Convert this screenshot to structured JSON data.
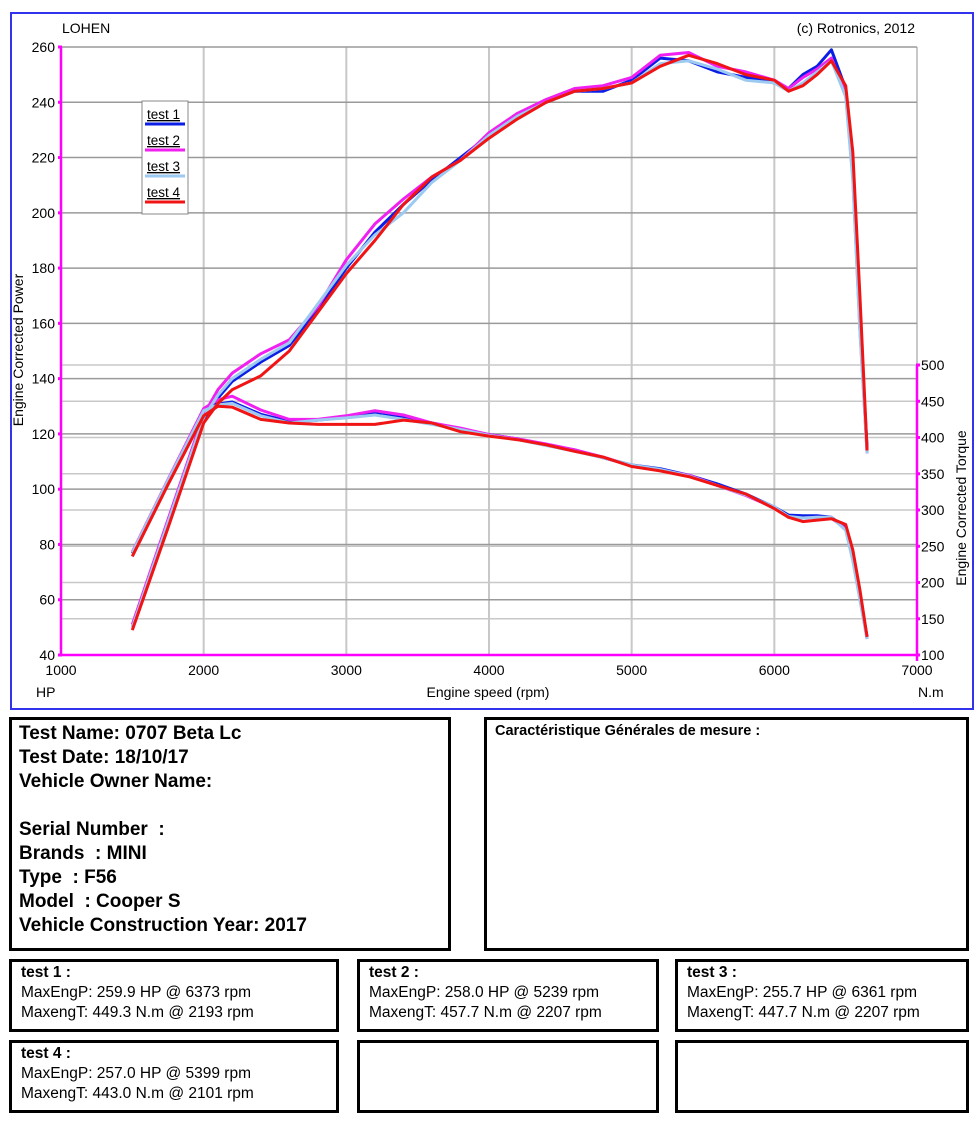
{
  "chart_data": {
    "type": "line",
    "title_left": "LOHEN",
    "title_right": "(c) Rotronics, 2012",
    "xlabel": "Engine speed (rpm)",
    "x_unit_left": "HP",
    "x_unit_right": "N.m",
    "ylabel_left": "Engine Corrected Power",
    "ylabel_right": "Engine Corrected Torque",
    "xlim": [
      1000,
      7000
    ],
    "xticks": [
      1000,
      2000,
      3000,
      4000,
      5000,
      6000,
      7000
    ],
    "ylim_left": [
      40,
      260
    ],
    "yticks_left": [
      40,
      60,
      80,
      100,
      120,
      140,
      160,
      180,
      200,
      220,
      240,
      260
    ],
    "ylim_right": [
      100,
      500
    ],
    "yticks_right": [
      100,
      150,
      200,
      250,
      300,
      350,
      400,
      450,
      500
    ],
    "grid": true,
    "legend_position": "top-left",
    "rpm": [
      1500,
      1750,
      2000,
      2100,
      2200,
      2400,
      2600,
      2800,
      3000,
      3200,
      3400,
      3600,
      3800,
      4000,
      4200,
      4400,
      4600,
      4800,
      5000,
      5200,
      5400,
      5600,
      5800,
      6000,
      6100,
      6200,
      6300,
      6400,
      6500,
      6550,
      6600,
      6650
    ],
    "series": [
      {
        "name": "test 1",
        "color": "#0a1ee6",
        "power": [
          50,
          88,
          125,
          133,
          139,
          146,
          152,
          165,
          180,
          193,
          203,
          212,
          220,
          228,
          235,
          240,
          244,
          244,
          248,
          256,
          255,
          251,
          249,
          247,
          245,
          250,
          253,
          259,
          245,
          215,
          160,
          115
        ],
        "torque": [
          240,
          340,
          435,
          446,
          449,
          432,
          422,
          424,
          428,
          433,
          427,
          420,
          412,
          404,
          398,
          390,
          383,
          372,
          362,
          357,
          348,
          336,
          322,
          304,
          293,
          292,
          292,
          290,
          275,
          235,
          180,
          125
        ]
      },
      {
        "name": "test 2",
        "color": "#f020f0",
        "power": [
          51,
          89,
          127,
          136,
          142,
          149,
          154,
          166,
          183,
          196,
          205,
          213,
          219,
          229,
          236,
          241,
          245,
          246,
          249,
          257,
          258,
          253,
          251,
          248,
          245,
          249,
          252,
          256,
          243,
          213,
          158,
          113
        ],
        "torque": [
          242,
          342,
          440,
          452,
          457,
          438,
          425,
          425,
          430,
          437,
          431,
          420,
          413,
          404,
          398,
          391,
          383,
          373,
          361,
          355,
          348,
          334,
          320,
          303,
          290,
          289,
          290,
          289,
          274,
          233,
          178,
          122
        ]
      },
      {
        "name": "test 3",
        "color": "#9ccaf0",
        "power": [
          50,
          88,
          126,
          134,
          140,
          147,
          153,
          167,
          181,
          192,
          200,
          211,
          219,
          228,
          235,
          240,
          244,
          245,
          247,
          254,
          255,
          252,
          248,
          247,
          244,
          247,
          251,
          255,
          242,
          212,
          157,
          113
        ],
        "torque": [
          241,
          341,
          437,
          445,
          447,
          430,
          420,
          424,
          427,
          431,
          425,
          418,
          411,
          403,
          397,
          389,
          381,
          372,
          362,
          356,
          347,
          334,
          321,
          304,
          291,
          289,
          290,
          290,
          272,
          230,
          176,
          122
        ]
      },
      {
        "name": "test 4",
        "color": "#f01414",
        "power": [
          49,
          86,
          124,
          131,
          136,
          141,
          150,
          164,
          178,
          190,
          203,
          213,
          219,
          227,
          234,
          240,
          244,
          245,
          247,
          253,
          257,
          254,
          250,
          248,
          244,
          246,
          250,
          255,
          246,
          222,
          170,
          114
        ],
        "torque": [
          236,
          335,
          430,
          443,
          442,
          425,
          420,
          418,
          418,
          418,
          424,
          420,
          408,
          402,
          397,
          390,
          381,
          373,
          360,
          354,
          346,
          334,
          322,
          302,
          290,
          284,
          286,
          288,
          280,
          245,
          190,
          125
        ]
      }
    ]
  },
  "info": {
    "lines": [
      "Test Name: 0707 Beta Lc",
      "Test Date: 18/10/17",
      "Vehicle Owner Name:",
      "",
      "Serial Number  :",
      "Brands  : MINI",
      "Type  : F56",
      "Model  : Cooper S",
      "Vehicle Construction Year: 2017"
    ],
    "general_title": "Caractéristique Générales de mesure :"
  },
  "results": [
    {
      "title": "test 1 :",
      "power": "MaxEngP: 259.9 HP @ 6373 rpm",
      "torque": "MaxengT: 449.3 N.m @ 2193 rpm"
    },
    {
      "title": "test 2 :",
      "power": "MaxEngP: 258.0 HP @ 5239 rpm",
      "torque": "MaxengT: 457.7 N.m @ 2207 rpm"
    },
    {
      "title": "test 3 :",
      "power": "MaxEngP: 255.7 HP @ 6361 rpm",
      "torque": "MaxengT: 447.7 N.m @ 2207 rpm"
    },
    {
      "title": "test 4 :",
      "power": "MaxEngP: 257.0 HP @ 5399 rpm",
      "torque": "MaxengT: 443.0 N.m @ 2101 rpm"
    }
  ]
}
